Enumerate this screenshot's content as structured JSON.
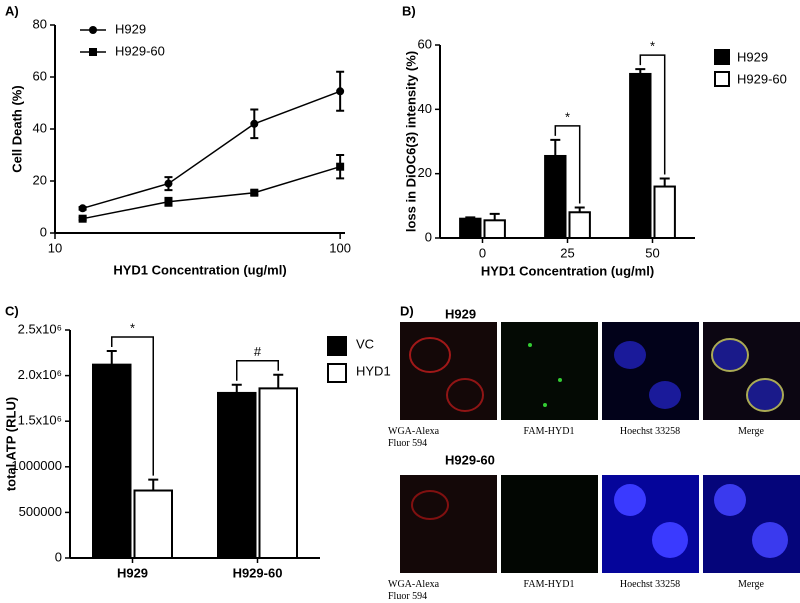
{
  "chart_data": [
    {
      "type": "line",
      "panel_label": "A)",
      "x_label": "HYD1 Concentration (ug/ml)",
      "y_label": "Cell Death (%)",
      "x": [
        12.5,
        25,
        50,
        100
      ],
      "x_scale": "log",
      "xlim": [
        10,
        104
      ],
      "xticks": [
        10,
        100
      ],
      "ylim": [
        0,
        80
      ],
      "yticks": [
        0,
        20,
        40,
        60,
        80
      ],
      "legend": "upper left",
      "series": [
        {
          "name": "H929",
          "color": "#000000",
          "marker": "circle",
          "values": [
            9.5,
            19,
            42,
            54.5
          ],
          "errors": [
            0.5,
            2.5,
            5.5,
            7.5
          ]
        },
        {
          "name": "H929-60",
          "color": "#000000",
          "marker": "square",
          "values": [
            5.5,
            12,
            15.5,
            25.5
          ],
          "errors": [
            0.5,
            1.5,
            0.8,
            4.5
          ]
        }
      ]
    },
    {
      "type": "bar",
      "panel_label": "B)",
      "x_label": "HYD1 Concentration (ug/ml)",
      "y_label": "loss in DiOC6(3) intensity (%)",
      "categories": [
        "0",
        "25",
        "50"
      ],
      "ylim": [
        0,
        60
      ],
      "yticks": [
        0,
        20,
        40,
        60
      ],
      "legend": "right",
      "significance": [
        null,
        "*",
        "*"
      ],
      "series": [
        {
          "name": "H929",
          "color": "#000000",
          "values": [
            6,
            25.5,
            51
          ],
          "errors": [
            0.4,
            5,
            1.5
          ]
        },
        {
          "name": "H929-60",
          "color": "#ffffff",
          "values": [
            5.5,
            8,
            16
          ],
          "errors": [
            2,
            1.5,
            2.5
          ]
        }
      ]
    },
    {
      "type": "bar",
      "panel_label": "C)",
      "y_label": "total ATP (RLU)",
      "categories": [
        "H929",
        "H929-60"
      ],
      "ylim": [
        0,
        2500000
      ],
      "yticks": [
        0,
        500000,
        1000000,
        {
          "value": 1500000,
          "label": "1.5x10⁶"
        },
        {
          "value": 2000000,
          "label": "2.0x10⁶"
        },
        {
          "value": 2500000,
          "label": "2.5x10⁶"
        }
      ],
      "legend": "right",
      "significance": [
        "*",
        "#"
      ],
      "series": [
        {
          "name": "VC",
          "color": "#000000",
          "values": [
            2120000,
            1810000
          ],
          "errors": [
            150000,
            90000
          ]
        },
        {
          "name": "HYD1",
          "color": "#ffffff",
          "values": [
            740000,
            1860000
          ],
          "errors": [
            120000,
            150000
          ]
        }
      ]
    }
  ],
  "image_panel": {
    "label": "D)",
    "rows": [
      {
        "title": "H929",
        "captions": [
          "WGA-Alexa Fluor 594",
          "FAM-HYD1",
          "Hoechst 33258",
          "Merge"
        ]
      },
      {
        "title": "H929-60",
        "captions": [
          "WGA-Alexa Fluor 594",
          "FAM-HYD1",
          "Hoechst 33258",
          "Merge"
        ]
      }
    ]
  }
}
